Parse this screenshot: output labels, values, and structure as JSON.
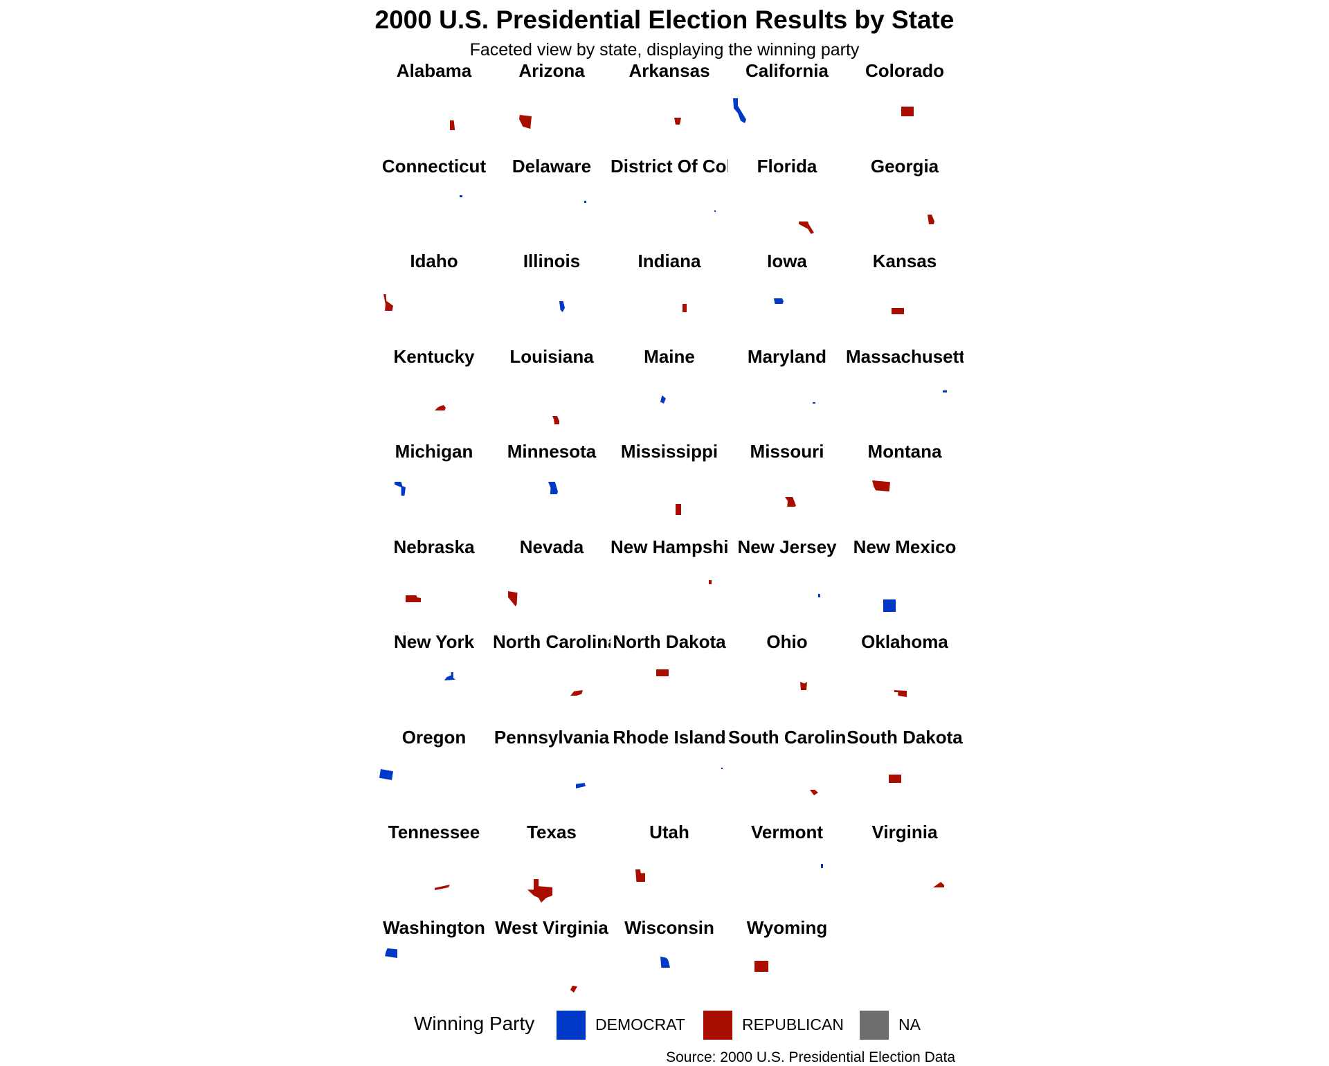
{
  "title": "2000 U.S. Presidential Election Results by State",
  "subtitle": "Faceted view by state, displaying the winning party",
  "caption": "Source: 2000 U.S. Presidential Election Data",
  "colors": {
    "DEMOCRAT": "#0039C8",
    "REPUBLICAN": "#A80D00",
    "NA": "#6E6E6E"
  },
  "legend": {
    "title": "Winning Party",
    "items": [
      {
        "key": "DEMOCRAT",
        "label": "DEMOCRAT"
      },
      {
        "key": "REPUBLICAN",
        "label": "REPUBLICAN"
      },
      {
        "key": "NA",
        "label": "NA"
      }
    ]
  },
  "states": [
    {
      "name": "Alabama",
      "party": "REPUBLICAN"
    },
    {
      "name": "Arizona",
      "party": "REPUBLICAN"
    },
    {
      "name": "Arkansas",
      "party": "REPUBLICAN"
    },
    {
      "name": "California",
      "party": "DEMOCRAT"
    },
    {
      "name": "Colorado",
      "party": "REPUBLICAN"
    },
    {
      "name": "Connecticut",
      "party": "DEMOCRAT"
    },
    {
      "name": "Delaware",
      "party": "DEMOCRAT"
    },
    {
      "name": "District Of Columbia",
      "party": "DEMOCRAT"
    },
    {
      "name": "Florida",
      "party": "REPUBLICAN"
    },
    {
      "name": "Georgia",
      "party": "REPUBLICAN"
    },
    {
      "name": "Idaho",
      "party": "REPUBLICAN"
    },
    {
      "name": "Illinois",
      "party": "DEMOCRAT"
    },
    {
      "name": "Indiana",
      "party": "REPUBLICAN"
    },
    {
      "name": "Iowa",
      "party": "DEMOCRAT"
    },
    {
      "name": "Kansas",
      "party": "REPUBLICAN"
    },
    {
      "name": "Kentucky",
      "party": "REPUBLICAN"
    },
    {
      "name": "Louisiana",
      "party": "REPUBLICAN"
    },
    {
      "name": "Maine",
      "party": "DEMOCRAT"
    },
    {
      "name": "Maryland",
      "party": "DEMOCRAT"
    },
    {
      "name": "Massachusetts",
      "party": "DEMOCRAT"
    },
    {
      "name": "Michigan",
      "party": "DEMOCRAT"
    },
    {
      "name": "Minnesota",
      "party": "DEMOCRAT"
    },
    {
      "name": "Mississippi",
      "party": "REPUBLICAN"
    },
    {
      "name": "Missouri",
      "party": "REPUBLICAN"
    },
    {
      "name": "Montana",
      "party": "REPUBLICAN"
    },
    {
      "name": "Nebraska",
      "party": "REPUBLICAN"
    },
    {
      "name": "Nevada",
      "party": "REPUBLICAN"
    },
    {
      "name": "New Hampshire",
      "party": "REPUBLICAN"
    },
    {
      "name": "New Jersey",
      "party": "DEMOCRAT"
    },
    {
      "name": "New Mexico",
      "party": "DEMOCRAT"
    },
    {
      "name": "New York",
      "party": "DEMOCRAT"
    },
    {
      "name": "North Carolina",
      "party": "REPUBLICAN"
    },
    {
      "name": "North Dakota",
      "party": "REPUBLICAN"
    },
    {
      "name": "Ohio",
      "party": "REPUBLICAN"
    },
    {
      "name": "Oklahoma",
      "party": "REPUBLICAN"
    },
    {
      "name": "Oregon",
      "party": "DEMOCRAT"
    },
    {
      "name": "Pennsylvania",
      "party": "DEMOCRAT"
    },
    {
      "name": "Rhode Island",
      "party": "DEMOCRAT"
    },
    {
      "name": "South Carolina",
      "party": "REPUBLICAN"
    },
    {
      "name": "South Dakota",
      "party": "REPUBLICAN"
    },
    {
      "name": "Tennessee",
      "party": "REPUBLICAN"
    },
    {
      "name": "Texas",
      "party": "REPUBLICAN"
    },
    {
      "name": "Utah",
      "party": "REPUBLICAN"
    },
    {
      "name": "Vermont",
      "party": "DEMOCRAT"
    },
    {
      "name": "Virginia",
      "party": "REPUBLICAN"
    },
    {
      "name": "Washington",
      "party": "DEMOCRAT"
    },
    {
      "name": "West Virginia",
      "party": "REPUBLICAN"
    },
    {
      "name": "Wisconsin",
      "party": "DEMOCRAT"
    },
    {
      "name": "Wyoming",
      "party": "REPUBLICAN"
    }
  ]
}
